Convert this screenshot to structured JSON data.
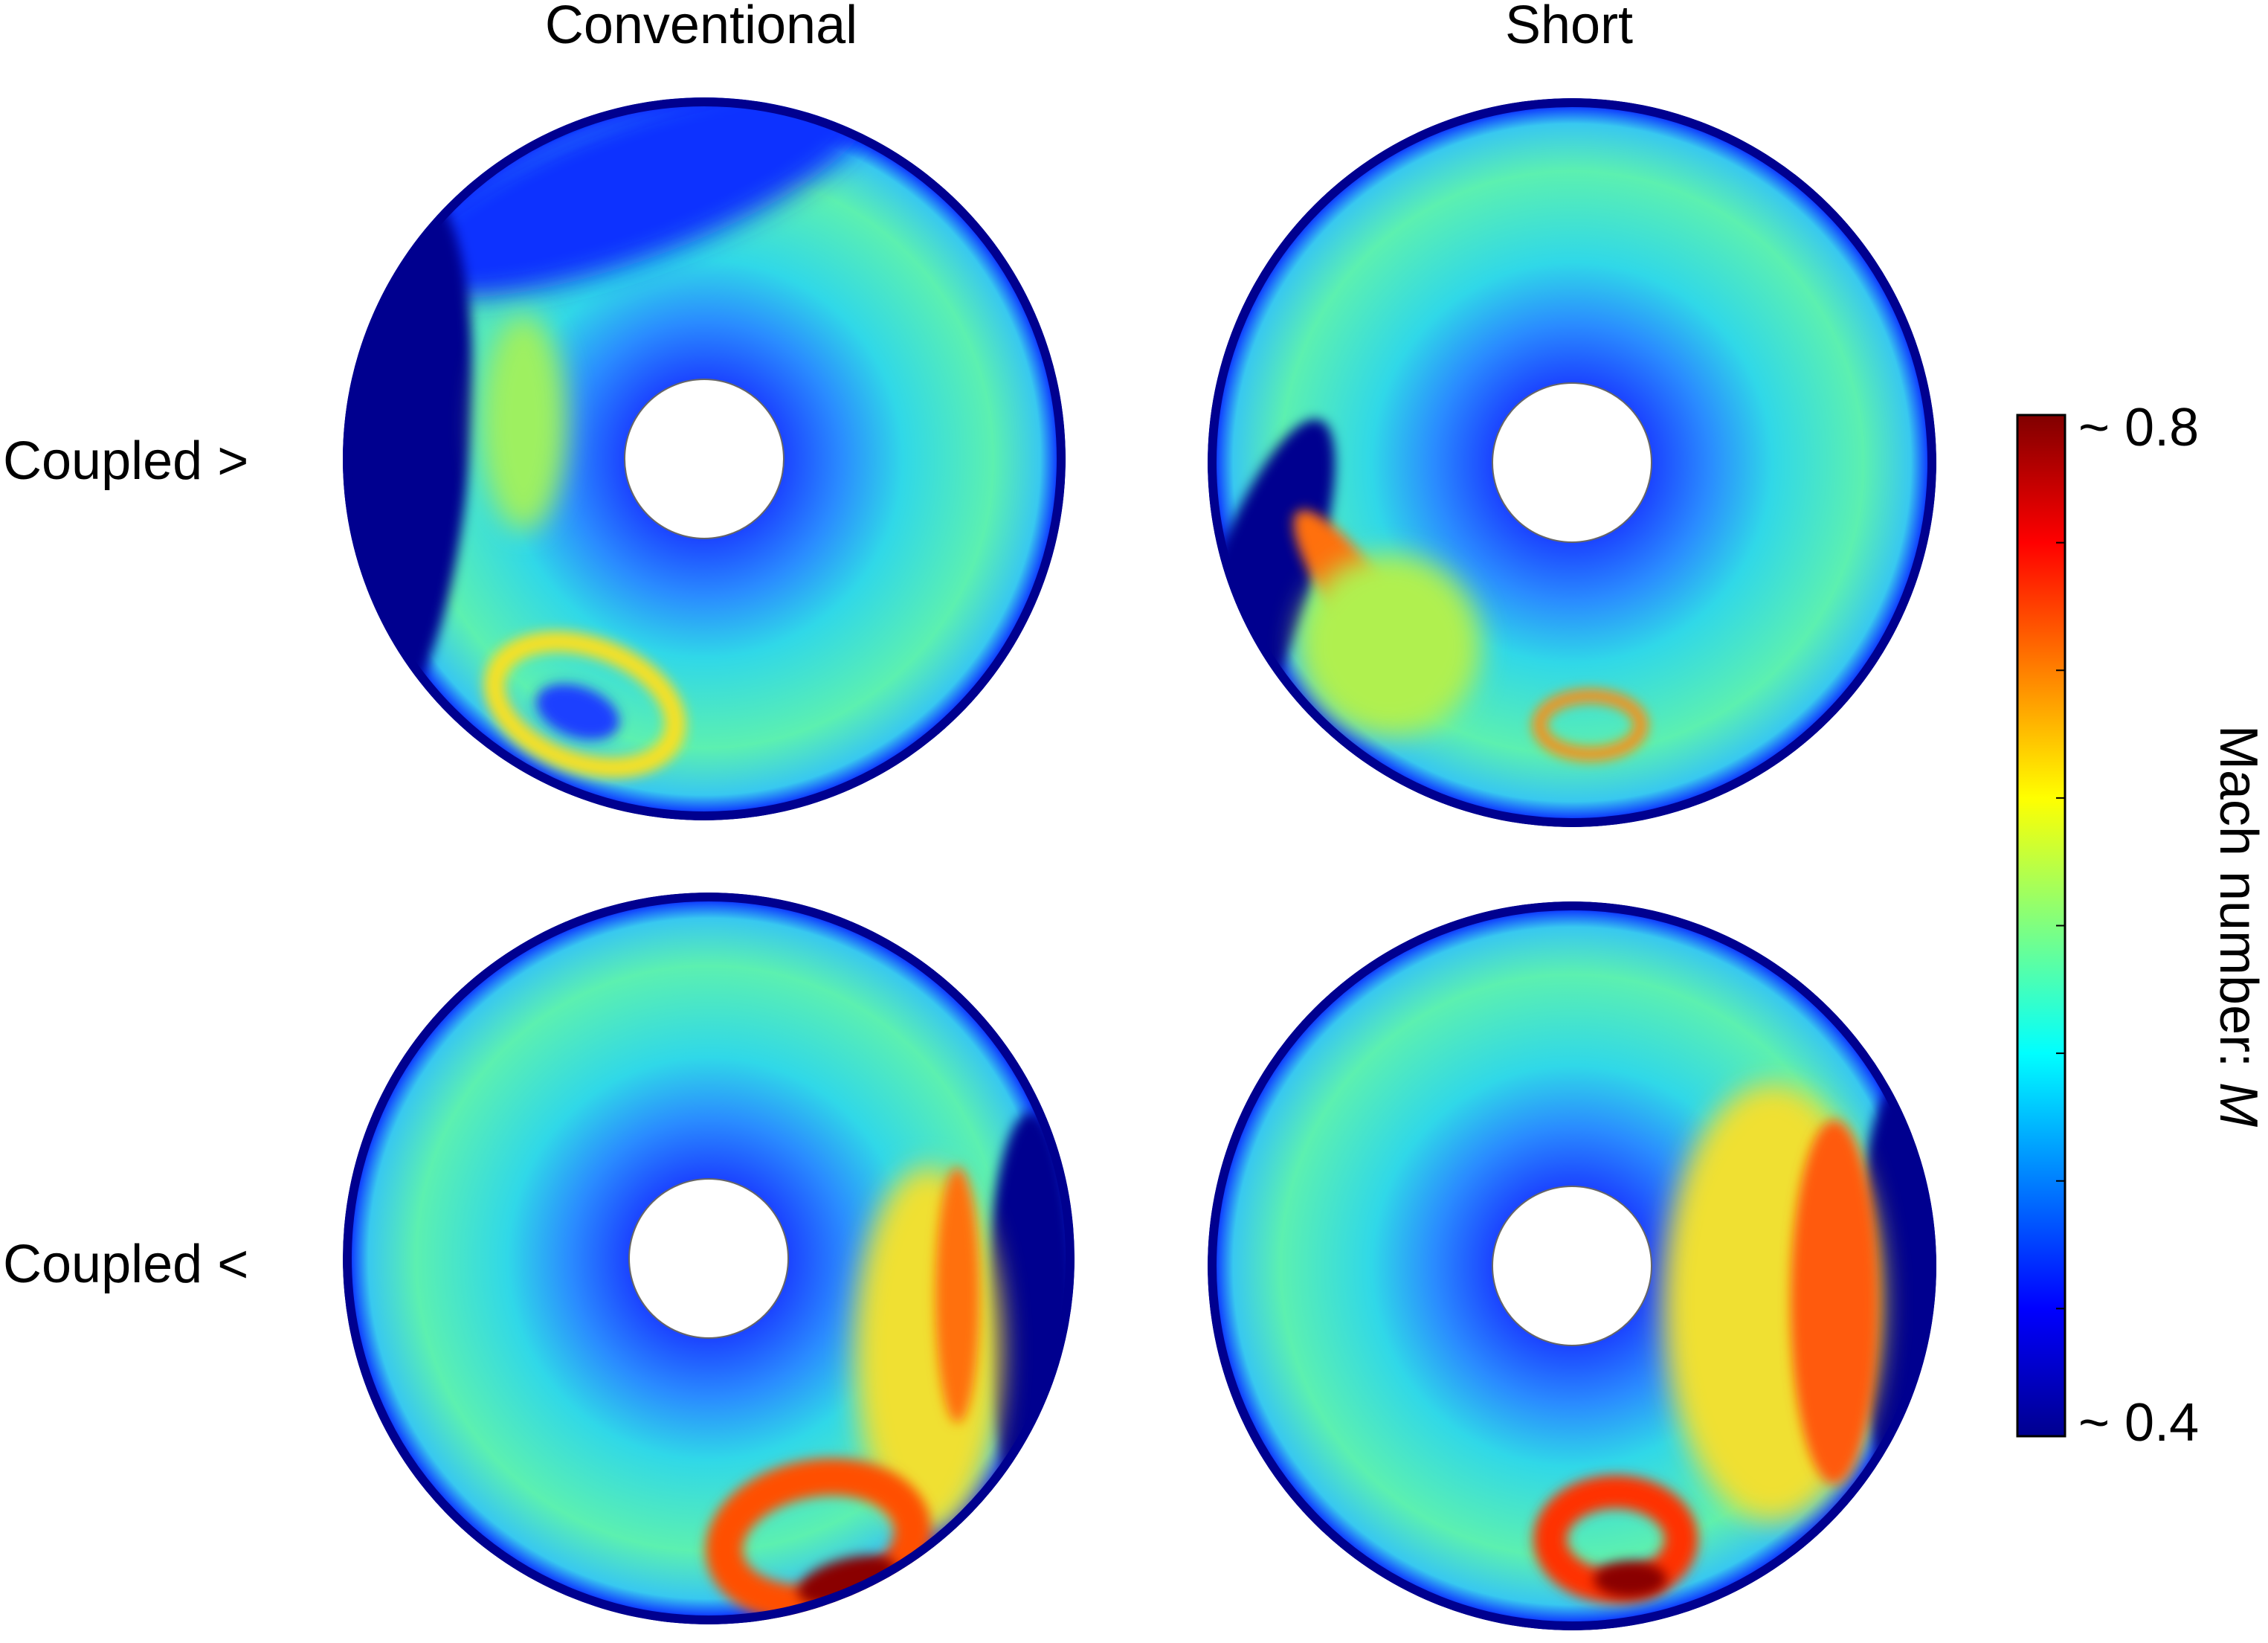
{
  "columns": [
    "Conventional",
    "Short"
  ],
  "rows": [
    "Coupled >",
    "Coupled <"
  ],
  "colorbar": {
    "max_label": "~ 0.8",
    "min_label": "~ 0.4",
    "label": "Mach number: ",
    "symbol": "M"
  }
}
